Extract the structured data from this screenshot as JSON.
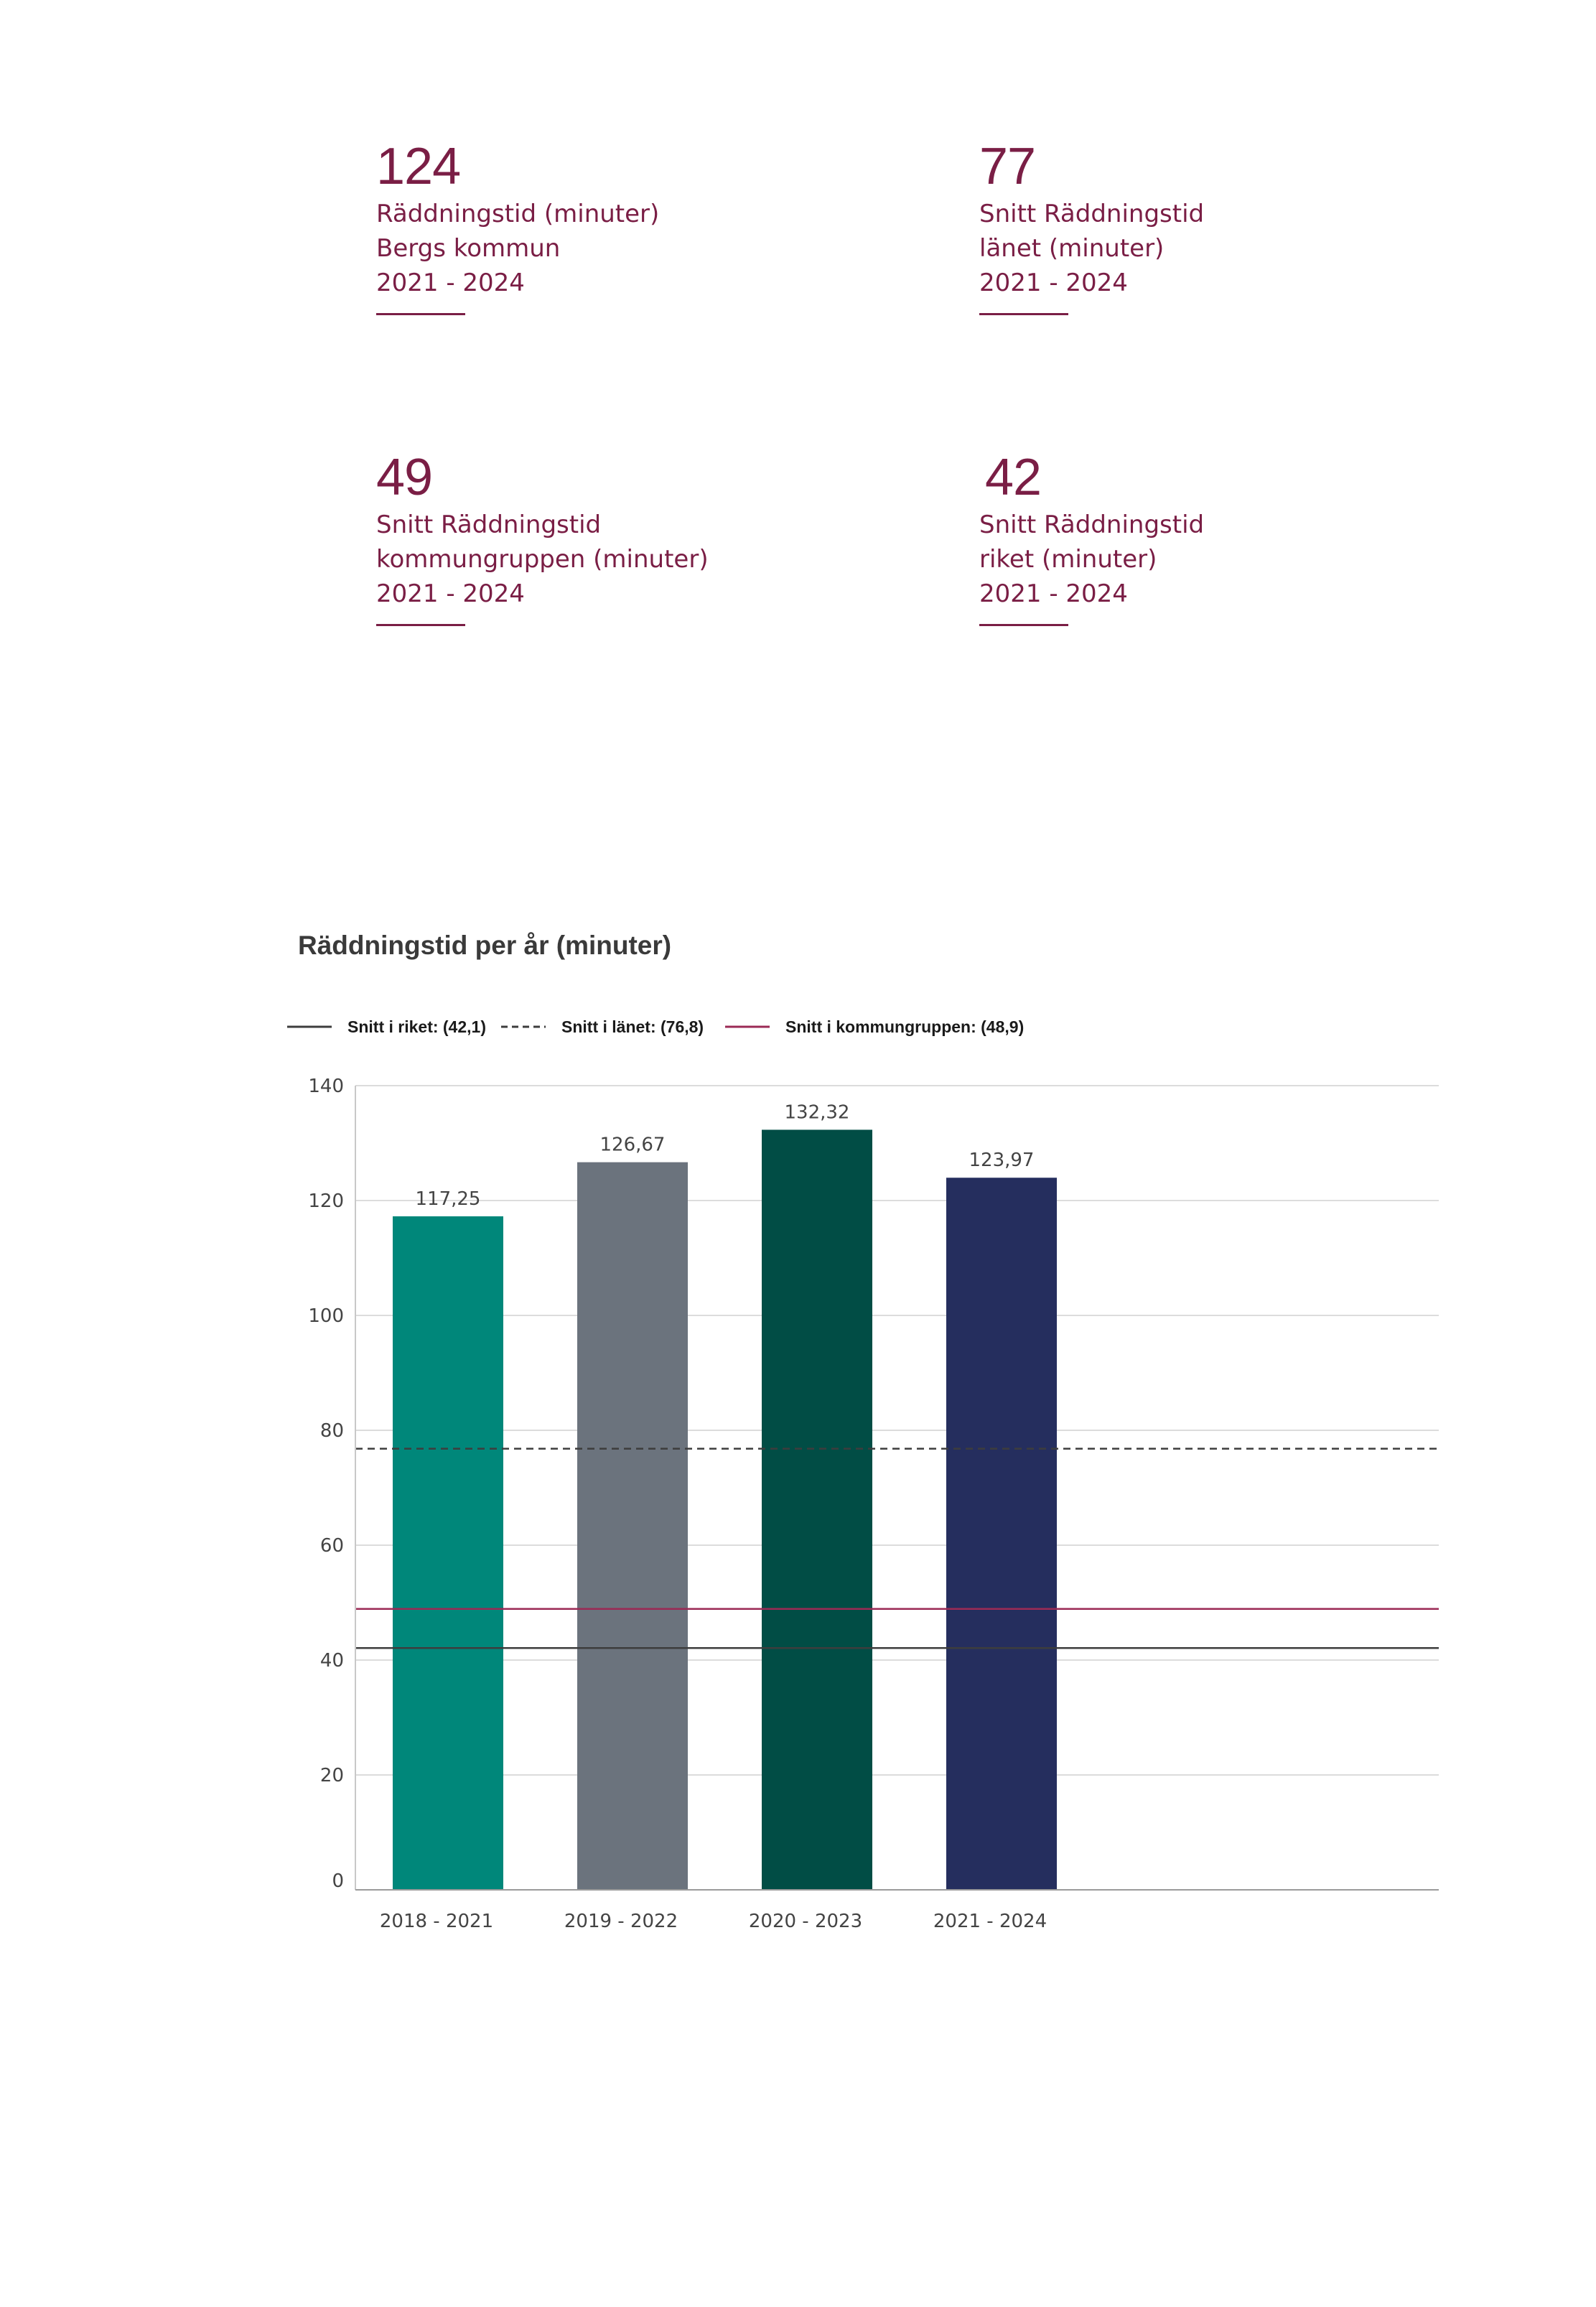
{
  "stats": [
    {
      "value": "124",
      "lines": [
        "Räddningstid (minuter)",
        "Bergs kommun",
        "2021 - 2024"
      ]
    },
    {
      "value": "77",
      "lines": [
        "Snitt Räddningstid",
        "länet (minuter)",
        "2021 - 2024"
      ]
    },
    {
      "value": "49",
      "lines": [
        "Snitt Räddningstid",
        "kommungruppen (minuter)",
        "2021 - 2024"
      ]
    },
    {
      "value": "42",
      "lines": [
        "Snitt Räddningstid",
        "riket (minuter)",
        "2021 - 2024"
      ]
    }
  ],
  "colors": {
    "accent": "#7a1e45",
    "bars": [
      "#00877a",
      "#6b737d",
      "#014d45",
      "#252e5e"
    ],
    "riket": "#3d3d3d",
    "lanet": "#3d3d3d",
    "kommungruppen": "#9b2a55",
    "grid": "#dcdcdc"
  },
  "chart_data": {
    "type": "bar",
    "title": "Räddningstid per år (minuter)",
    "categories": [
      "2018 - 2021",
      "2019 - 2022",
      "2020 - 2023",
      "2021 - 2024"
    ],
    "values": [
      117.25,
      126.67,
      132.32,
      123.97
    ],
    "value_labels": [
      "117,25",
      "126,67",
      "132,32",
      "123,97"
    ],
    "ylim": [
      0,
      140
    ],
    "yticks": [
      0,
      20,
      40,
      60,
      80,
      100,
      120,
      140
    ],
    "grid": true,
    "legend_position": "top-left",
    "reference_lines": [
      {
        "label": "Snitt i riket: (42,1)",
        "value": 42.1,
        "style": "solid",
        "color": "#3d3d3d"
      },
      {
        "label": "Snitt i länet: (76,8)",
        "value": 76.8,
        "style": "dashed",
        "color": "#3d3d3d"
      },
      {
        "label": "Snitt i kommungruppen: (48,9)",
        "value": 48.9,
        "style": "solid",
        "color": "#9b2a55"
      }
    ]
  }
}
